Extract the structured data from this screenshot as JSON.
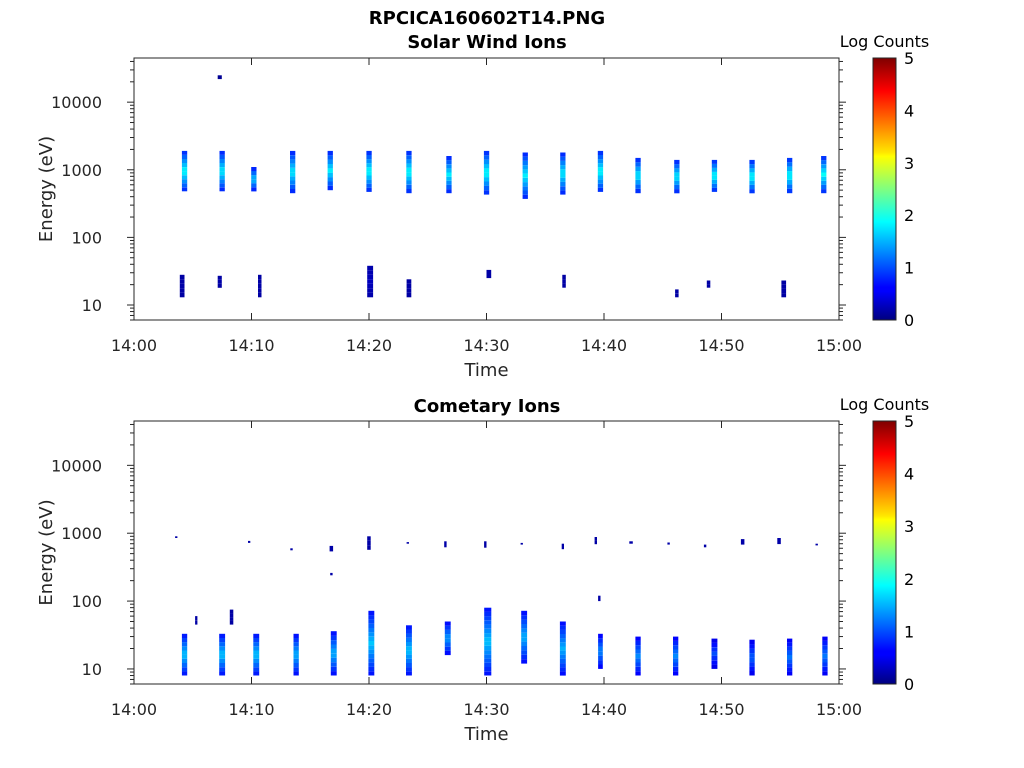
{
  "figure_title": "RPCICA160602T14.PNG",
  "chart_data": [
    {
      "type": "heatmap",
      "title": "Solar Wind Ions",
      "xlabel": "Time",
      "ylabel": "Energy (eV)",
      "x_ticks": [
        "14:00",
        "14:10",
        "14:20",
        "14:30",
        "14:40",
        "14:50",
        "15:00"
      ],
      "x_range_min": [
        0,
        60
      ],
      "y_scale": "log",
      "y_ticks": [
        "10",
        "100",
        "1000",
        "10000"
      ],
      "y_tick_values": [
        10,
        100,
        1000,
        10000
      ],
      "ylim": [
        6,
        45000
      ],
      "colorbar": {
        "label": "Log Counts",
        "ticks": [
          "0",
          "1",
          "2",
          "3",
          "4",
          "5"
        ],
        "range": [
          0,
          5
        ],
        "colormap": "jet"
      },
      "cells": [
        {
          "t": 4.3,
          "e": [
            480,
            1900
          ],
          "peak": 1.9,
          "w": 0.45
        },
        {
          "t": 7.5,
          "e": [
            480,
            1900
          ],
          "peak": 1.8,
          "w": 0.45
        },
        {
          "t": 10.2,
          "e": [
            480,
            1100
          ],
          "peak": 1.6,
          "w": 0.45
        },
        {
          "t": 13.5,
          "e": [
            450,
            1900
          ],
          "peak": 1.8,
          "w": 0.45
        },
        {
          "t": 16.7,
          "e": [
            500,
            1900
          ],
          "peak": 1.8,
          "w": 0.45
        },
        {
          "t": 20.0,
          "e": [
            470,
            1900
          ],
          "peak": 1.9,
          "w": 0.45
        },
        {
          "t": 23.4,
          "e": [
            450,
            1900
          ],
          "peak": 1.9,
          "w": 0.45
        },
        {
          "t": 26.8,
          "e": [
            450,
            1600
          ],
          "peak": 1.8,
          "w": 0.45
        },
        {
          "t": 30.0,
          "e": [
            430,
            1900
          ],
          "peak": 1.9,
          "w": 0.45
        },
        {
          "t": 33.3,
          "e": [
            370,
            1800
          ],
          "peak": 1.8,
          "w": 0.45
        },
        {
          "t": 36.5,
          "e": [
            430,
            1800
          ],
          "peak": 1.8,
          "w": 0.45
        },
        {
          "t": 39.7,
          "e": [
            470,
            1900
          ],
          "peak": 1.9,
          "w": 0.45
        },
        {
          "t": 42.9,
          "e": [
            450,
            1500
          ],
          "peak": 1.8,
          "w": 0.45
        },
        {
          "t": 46.2,
          "e": [
            450,
            1400
          ],
          "peak": 1.8,
          "w": 0.45
        },
        {
          "t": 49.4,
          "e": [
            470,
            1400
          ],
          "peak": 1.9,
          "w": 0.45
        },
        {
          "t": 52.6,
          "e": [
            450,
            1400
          ],
          "peak": 1.9,
          "w": 0.45
        },
        {
          "t": 55.8,
          "e": [
            450,
            1500
          ],
          "peak": 1.9,
          "w": 0.45
        },
        {
          "t": 58.7,
          "e": [
            450,
            1600
          ],
          "peak": 1.9,
          "w": 0.45
        },
        {
          "t": 7.3,
          "e": [
            22000,
            25000
          ],
          "peak": 0.1,
          "w": 0.35
        },
        {
          "t": 4.1,
          "e": [
            13,
            28
          ],
          "peak": 0.2,
          "w": 0.4
        },
        {
          "t": 7.3,
          "e": [
            18,
            27
          ],
          "peak": 0.2,
          "w": 0.35
        },
        {
          "t": 10.7,
          "e": [
            13,
            28
          ],
          "peak": 0.2,
          "w": 0.3
        },
        {
          "t": 20.1,
          "e": [
            13,
            38
          ],
          "peak": 0.3,
          "w": 0.5
        },
        {
          "t": 23.4,
          "e": [
            13,
            24
          ],
          "peak": 0.2,
          "w": 0.4
        },
        {
          "t": 30.2,
          "e": [
            25,
            33
          ],
          "peak": 0.2,
          "w": 0.4
        },
        {
          "t": 36.6,
          "e": [
            18,
            28
          ],
          "peak": 0.2,
          "w": 0.3
        },
        {
          "t": 46.2,
          "e": [
            13,
            17
          ],
          "peak": 0.2,
          "w": 0.3
        },
        {
          "t": 48.9,
          "e": [
            18,
            23
          ],
          "peak": 0.2,
          "w": 0.3
        },
        {
          "t": 55.3,
          "e": [
            13,
            23
          ],
          "peak": 0.2,
          "w": 0.4
        }
      ]
    },
    {
      "type": "heatmap",
      "title": "Cometary Ions",
      "xlabel": "Time",
      "ylabel": "Energy (eV)",
      "x_ticks": [
        "14:00",
        "14:10",
        "14:20",
        "14:30",
        "14:40",
        "14:50",
        "15:00"
      ],
      "x_range_min": [
        0,
        60
      ],
      "y_scale": "log",
      "y_ticks": [
        "10",
        "100",
        "1000",
        "10000"
      ],
      "y_tick_values": [
        10,
        100,
        1000,
        10000
      ],
      "ylim": [
        6,
        45000
      ],
      "colorbar": {
        "label": "Log Counts",
        "ticks": [
          "0",
          "1",
          "2",
          "3",
          "4",
          "5"
        ],
        "range": [
          0,
          5
        ],
        "colormap": "jet"
      },
      "cells": [
        {
          "t": 4.3,
          "e": [
            8,
            33
          ],
          "peak": 1.6,
          "w": 0.45
        },
        {
          "t": 7.5,
          "e": [
            8,
            33
          ],
          "peak": 1.6,
          "w": 0.5
        },
        {
          "t": 10.4,
          "e": [
            8,
            33
          ],
          "peak": 1.6,
          "w": 0.5
        },
        {
          "t": 13.8,
          "e": [
            8,
            33
          ],
          "peak": 1.5,
          "w": 0.45
        },
        {
          "t": 17.0,
          "e": [
            8,
            36
          ],
          "peak": 1.5,
          "w": 0.5
        },
        {
          "t": 20.2,
          "e": [
            8,
            72
          ],
          "peak": 1.6,
          "w": 0.5
        },
        {
          "t": 23.4,
          "e": [
            8,
            44
          ],
          "peak": 1.6,
          "w": 0.5
        },
        {
          "t": 26.7,
          "e": [
            16,
            50
          ],
          "peak": 1.4,
          "w": 0.5
        },
        {
          "t": 30.1,
          "e": [
            8,
            80
          ],
          "peak": 1.6,
          "w": 0.6
        },
        {
          "t": 33.2,
          "e": [
            12,
            72
          ],
          "peak": 1.5,
          "w": 0.5
        },
        {
          "t": 36.5,
          "e": [
            8,
            50
          ],
          "peak": 1.5,
          "w": 0.5
        },
        {
          "t": 39.7,
          "e": [
            10,
            33
          ],
          "peak": 1.3,
          "w": 0.4
        },
        {
          "t": 42.9,
          "e": [
            8,
            30
          ],
          "peak": 1.3,
          "w": 0.45
        },
        {
          "t": 46.1,
          "e": [
            8,
            30
          ],
          "peak": 1.3,
          "w": 0.45
        },
        {
          "t": 49.4,
          "e": [
            10,
            28
          ],
          "peak": 1.0,
          "w": 0.5
        },
        {
          "t": 52.6,
          "e": [
            8,
            27
          ],
          "peak": 1.1,
          "w": 0.45
        },
        {
          "t": 55.8,
          "e": [
            8,
            28
          ],
          "peak": 1.2,
          "w": 0.45
        },
        {
          "t": 58.8,
          "e": [
            8,
            30
          ],
          "peak": 1.2,
          "w": 0.45
        },
        {
          "t": 8.3,
          "e": [
            45,
            75
          ],
          "peak": 0.2,
          "w": 0.3
        },
        {
          "t": 5.3,
          "e": [
            45,
            60
          ],
          "peak": 0.2,
          "w": 0.2
        },
        {
          "t": 3.6,
          "e": [
            850,
            900
          ],
          "peak": 0.2,
          "w": 0.2
        },
        {
          "t": 9.8,
          "e": [
            720,
            770
          ],
          "peak": 0.2,
          "w": 0.2
        },
        {
          "t": 13.4,
          "e": [
            560,
            600
          ],
          "peak": 0.2,
          "w": 0.2
        },
        {
          "t": 16.8,
          "e": [
            540,
            650
          ],
          "peak": 0.2,
          "w": 0.3
        },
        {
          "t": 16.8,
          "e": [
            240,
            260
          ],
          "peak": 0.2,
          "w": 0.2
        },
        {
          "t": 20.0,
          "e": [
            570,
            900
          ],
          "peak": 0.2,
          "w": 0.3
        },
        {
          "t": 23.3,
          "e": [
            700,
            740
          ],
          "peak": 0.2,
          "w": 0.2
        },
        {
          "t": 26.5,
          "e": [
            620,
            760
          ],
          "peak": 0.2,
          "w": 0.2
        },
        {
          "t": 29.9,
          "e": [
            610,
            760
          ],
          "peak": 0.2,
          "w": 0.2
        },
        {
          "t": 33.0,
          "e": [
            680,
            720
          ],
          "peak": 0.2,
          "w": 0.2
        },
        {
          "t": 36.5,
          "e": [
            580,
            700
          ],
          "peak": 0.2,
          "w": 0.2
        },
        {
          "t": 39.3,
          "e": [
            690,
            880
          ],
          "peak": 0.2,
          "w": 0.2
        },
        {
          "t": 39.6,
          "e": [
            100,
            120
          ],
          "peak": 0.2,
          "w": 0.2
        },
        {
          "t": 42.3,
          "e": [
            700,
            760
          ],
          "peak": 0.2,
          "w": 0.3
        },
        {
          "t": 45.5,
          "e": [
            680,
            730
          ],
          "peak": 0.2,
          "w": 0.2
        },
        {
          "t": 48.6,
          "e": [
            620,
            680
          ],
          "peak": 0.2,
          "w": 0.2
        },
        {
          "t": 51.8,
          "e": [
            680,
            820
          ],
          "peak": 0.2,
          "w": 0.3
        },
        {
          "t": 54.9,
          "e": [
            690,
            850
          ],
          "peak": 0.2,
          "w": 0.3
        },
        {
          "t": 58.1,
          "e": [
            660,
            700
          ],
          "peak": 0.2,
          "w": 0.2
        }
      ]
    }
  ]
}
